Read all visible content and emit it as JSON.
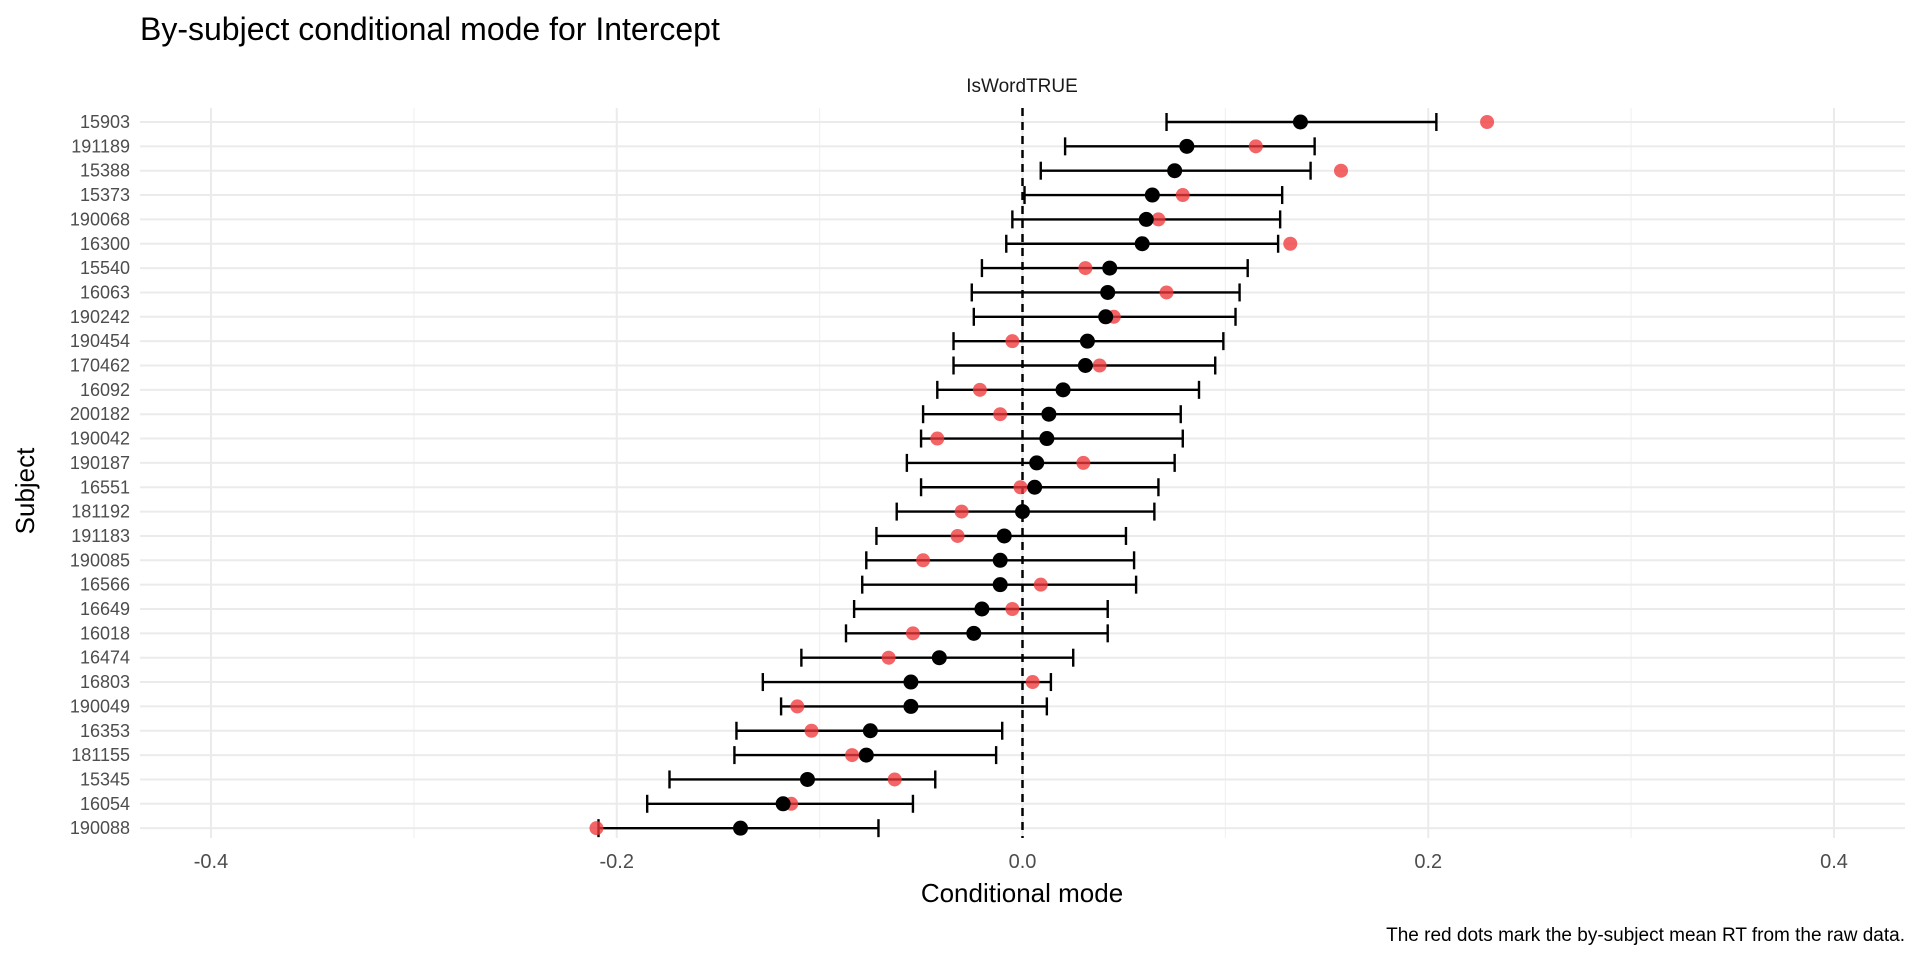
{
  "chart_data": {
    "type": "scatter",
    "title": "By-subject conditional mode for Intercept",
    "facet_label": "IsWordTRUE",
    "xlabel": "Conditional mode",
    "ylabel": "Subject",
    "caption": "The red dots mark the by-subject mean RT from the raw data.",
    "xlim": [
      -0.435,
      0.435
    ],
    "x_ticks": [
      -0.4,
      -0.2,
      0.0,
      0.2,
      0.4
    ],
    "x_tick_labels": [
      "-0.4",
      "-0.2",
      "0.0",
      "0.2",
      "0.4"
    ],
    "reference_line_x": 0,
    "grid": true,
    "series": [
      {
        "name": "conditional mode",
        "color": "#000000"
      },
      {
        "name": "by-subject mean RT",
        "color": "#f0393b"
      }
    ],
    "subjects": [
      "15903",
      "191189",
      "15388",
      "15373",
      "190068",
      "16300",
      "15540",
      "16063",
      "190242",
      "190454",
      "170462",
      "16092",
      "200182",
      "190042",
      "190187",
      "16551",
      "181192",
      "191183",
      "190085",
      "16566",
      "16649",
      "16018",
      "16474",
      "16803",
      "190049",
      "16353",
      "181155",
      "15345",
      "16054",
      "190088"
    ],
    "mode": [
      0.137,
      0.081,
      0.075,
      0.064,
      0.061,
      0.059,
      0.043,
      0.042,
      0.041,
      0.032,
      0.031,
      0.02,
      0.013,
      0.012,
      0.007,
      0.006,
      0.0,
      -0.009,
      -0.011,
      -0.011,
      -0.02,
      -0.024,
      -0.041,
      -0.055,
      -0.055,
      -0.075,
      -0.077,
      -0.106,
      -0.118,
      -0.139
    ],
    "lower": [
      0.071,
      0.021,
      0.009,
      0.001,
      -0.005,
      -0.008,
      -0.02,
      -0.025,
      -0.024,
      -0.034,
      -0.034,
      -0.042,
      -0.049,
      -0.05,
      -0.057,
      -0.05,
      -0.062,
      -0.072,
      -0.077,
      -0.079,
      -0.083,
      -0.087,
      -0.109,
      -0.128,
      -0.119,
      -0.141,
      -0.142,
      -0.174,
      -0.185,
      -0.209
    ],
    "upper": [
      0.204,
      0.144,
      0.142,
      0.128,
      0.127,
      0.126,
      0.111,
      0.107,
      0.105,
      0.099,
      0.095,
      0.087,
      0.078,
      0.079,
      0.075,
      0.067,
      0.065,
      0.051,
      0.055,
      0.056,
      0.042,
      0.042,
      0.025,
      0.014,
      0.012,
      -0.01,
      -0.013,
      -0.043,
      -0.054,
      -0.071
    ],
    "raw_mean": [
      0.229,
      0.115,
      0.157,
      0.079,
      0.067,
      0.132,
      0.031,
      0.071,
      0.045,
      -0.005,
      0.038,
      -0.021,
      -0.011,
      -0.042,
      0.03,
      -0.001,
      -0.03,
      -0.032,
      -0.049,
      0.009,
      -0.005,
      -0.054,
      -0.066,
      0.005,
      -0.111,
      -0.104,
      -0.084,
      -0.063,
      -0.114,
      -0.21
    ]
  }
}
